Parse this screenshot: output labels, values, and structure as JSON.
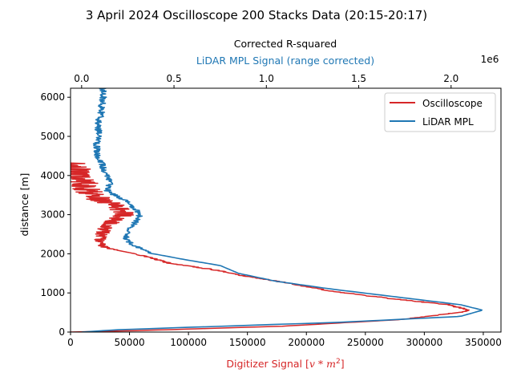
{
  "chart_data": {
    "type": "line",
    "title": "3 April 2024 Oscilloscope 200 Stacks Data (20:15-20:17)",
    "top_title": "Corrected R-squared",
    "xlabel": "Digitizer Signal [v * m^2]",
    "xlabel_parts": {
      "prefix": "Digitizer Signal [",
      "var": "v * m",
      "sup": "2",
      "suffix": "]"
    },
    "x2label": "LiDAR MPL Signal (range corrected)",
    "x2_multiplier": "1e6",
    "ylabel": "distance [m]",
    "xlim": [
      0,
      365000
    ],
    "x2lim": [
      -60000,
      2270000
    ],
    "ylim": [
      0,
      6230
    ],
    "xticks": [
      0,
      50000,
      100000,
      150000,
      200000,
      250000,
      300000,
      350000
    ],
    "xtick_labels": [
      "0",
      "50000",
      "100000",
      "150000",
      "200000",
      "250000",
      "300000",
      "350000"
    ],
    "x2ticks": [
      0,
      500000,
      1000000,
      1500000,
      2000000
    ],
    "x2tick_labels": [
      "0.0",
      "0.5",
      "1.0",
      "1.5",
      "2.0"
    ],
    "yticks": [
      0,
      1000,
      2000,
      3000,
      4000,
      5000,
      6000
    ],
    "ytick_labels": [
      "0",
      "1000",
      "2000",
      "3000",
      "4000",
      "5000",
      "6000"
    ],
    "grid": false,
    "legend_position": "top-right",
    "colors": {
      "oscilloscope": "#d62728",
      "lidar": "#1f77b4"
    },
    "series": [
      {
        "name": "Oscilloscope",
        "axis": "bottom",
        "noise_band": [
          [
            2100,
            3000
          ],
          [
            3500,
            12000
          ]
        ],
        "points": [
          [
            0,
            0
          ],
          [
            60000,
            40
          ],
          [
            180000,
            150
          ],
          [
            280000,
            320
          ],
          [
            330000,
            500
          ],
          [
            338000,
            560
          ],
          [
            320000,
            700
          ],
          [
            270000,
            860
          ],
          [
            220000,
            1050
          ],
          [
            185000,
            1250
          ],
          [
            150000,
            1420
          ],
          [
            120000,
            1600
          ],
          [
            85000,
            1750
          ],
          [
            70000,
            1880
          ],
          [
            55000,
            2000
          ],
          [
            38000,
            2100
          ],
          [
            26000,
            2200
          ],
          [
            25000,
            2400
          ],
          [
            28000,
            2600
          ],
          [
            35000,
            2800
          ],
          [
            46000,
            3000
          ],
          [
            42000,
            3150
          ],
          [
            28000,
            3350
          ],
          [
            18000,
            3500
          ],
          [
            14000,
            3650
          ],
          [
            13000,
            3750
          ],
          [
            9000,
            3900
          ],
          [
            7000,
            4050
          ],
          [
            3000,
            4250
          ],
          [
            1000,
            4330
          ]
        ]
      },
      {
        "name": "LiDAR MPL",
        "axis": "top",
        "points": [
          [
            0,
            0
          ],
          [
            200000,
            60
          ],
          [
            700000,
            140
          ],
          [
            1400000,
            250
          ],
          [
            2050000,
            400
          ],
          [
            2170000,
            560
          ],
          [
            2050000,
            700
          ],
          [
            1700000,
            900
          ],
          [
            1350000,
            1100
          ],
          [
            1050000,
            1300
          ],
          [
            850000,
            1500
          ],
          [
            750000,
            1700
          ],
          [
            560000,
            1850
          ],
          [
            390000,
            2000
          ],
          [
            330000,
            2100
          ],
          [
            270000,
            2250
          ],
          [
            240000,
            2400
          ],
          [
            260000,
            2650
          ],
          [
            300000,
            2850
          ],
          [
            315000,
            3000
          ],
          [
            290000,
            3150
          ],
          [
            240000,
            3350
          ],
          [
            170000,
            3520
          ],
          [
            140000,
            3600
          ],
          [
            150000,
            3750
          ],
          [
            150000,
            3900
          ],
          [
            130000,
            4050
          ],
          [
            110000,
            4300
          ],
          [
            85000,
            4500
          ],
          [
            80000,
            4800
          ],
          [
            95000,
            5050
          ],
          [
            85000,
            5300
          ],
          [
            105000,
            5550
          ],
          [
            110000,
            5800
          ],
          [
            120000,
            6050
          ],
          [
            115000,
            6230
          ]
        ]
      }
    ]
  }
}
